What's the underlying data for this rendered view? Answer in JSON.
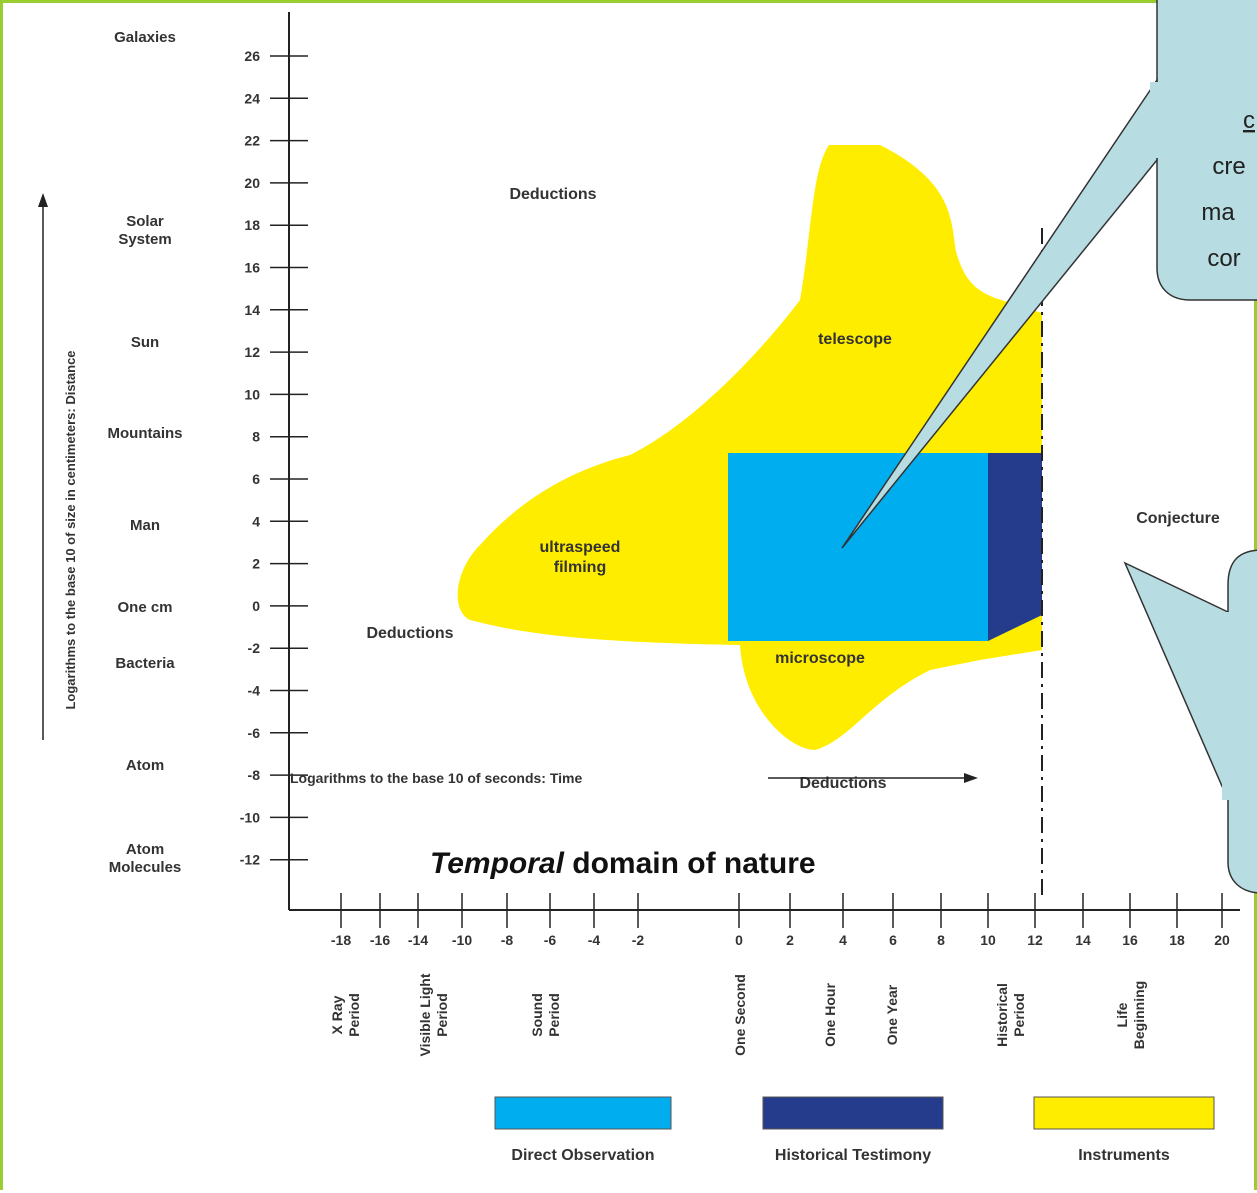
{
  "chart_data": {
    "type": "area",
    "title": "Temporal domain of nature",
    "title_emphasis": "Temporal",
    "title_rest": " domain of nature",
    "xlabel": "Logarithms to the base 10 of seconds: Time",
    "ylabel": "Logarithms to the base 10 of size in centimeters: Distance",
    "x_ticks": [
      "-18",
      "-16",
      "-14",
      "-10",
      "-8",
      "-6",
      "-4",
      "-2",
      "0",
      "2",
      "4",
      "6",
      "8",
      "10",
      "12",
      "14",
      "16",
      "18",
      "20"
    ],
    "y_ticks": [
      26,
      24,
      22,
      20,
      18,
      16,
      14,
      12,
      10,
      8,
      6,
      4,
      2,
      0,
      -2,
      -4,
      -6,
      -8,
      -10,
      -12
    ],
    "ylim": [
      -12,
      26
    ],
    "y_categories": [
      {
        "label": "Galaxies",
        "y": 27.5
      },
      {
        "label": "Solar System",
        "y": 17.5
      },
      {
        "label": "Sun",
        "y": 12.5
      },
      {
        "label": "Mountains",
        "y": 8.5
      },
      {
        "label": "Man",
        "y": 4
      },
      {
        "label": "One cm",
        "y": 0
      },
      {
        "label": "Bacteria",
        "y": -2.5
      },
      {
        "label": "Atom",
        "y": -7.5
      },
      {
        "label": "Atom Molecules",
        "y": -12.5
      }
    ],
    "x_categories": [
      {
        "label": "X Ray Period",
        "x": -18
      },
      {
        "label": "Visible Light Period",
        "x": -14
      },
      {
        "label": "Sound Period",
        "x": -10
      },
      {
        "label": "One Second",
        "x": 0
      },
      {
        "label": "One Hour",
        "x": 4
      },
      {
        "label": "One Year",
        "x": 6
      },
      {
        "label": "Historical Period",
        "x": 12
      },
      {
        "label": "Life Beginning",
        "x": 16
      }
    ],
    "regions": [
      {
        "label": "Deductions",
        "x": 4,
        "y": 19.5
      },
      {
        "label": "telescope",
        "x": 6.5,
        "y": 12
      },
      {
        "label": "ultraspeed filming",
        "x": -7,
        "y": 2
      },
      {
        "label": "Deductions",
        "x": -11,
        "y": -1.5
      },
      {
        "label": "microscope",
        "x": 3.5,
        "y": -3.5
      },
      {
        "label": "Deductions",
        "x": 4,
        "y": -8
      },
      {
        "label": "Conjecture",
        "x": 16,
        "y": 4
      }
    ],
    "series": [
      {
        "name": "Direct Observation",
        "color": "#00aeef",
        "x_range": [
          -0.5,
          10
        ],
        "y_range": [
          -1.6,
          7.3
        ]
      },
      {
        "name": "Historical Testimony",
        "color": "#253b8c",
        "x_range": [
          10,
          12
        ],
        "y_range": [
          -1.6,
          7.3
        ]
      },
      {
        "name": "Instruments",
        "color": "#ffed00"
      }
    ],
    "divider": {
      "x": 12,
      "style": "dash-dot"
    }
  },
  "callouts": [
    {
      "lines": [
        "cre",
        "ma",
        "cor"
      ],
      "underlined_line": "c"
    },
    {
      "lines": []
    }
  ],
  "colors": {
    "frame": "#9acd32",
    "callout_fill": "#b7dde3",
    "direct": "#00aeef",
    "historical": "#253b8c",
    "instruments": "#ffed00"
  }
}
